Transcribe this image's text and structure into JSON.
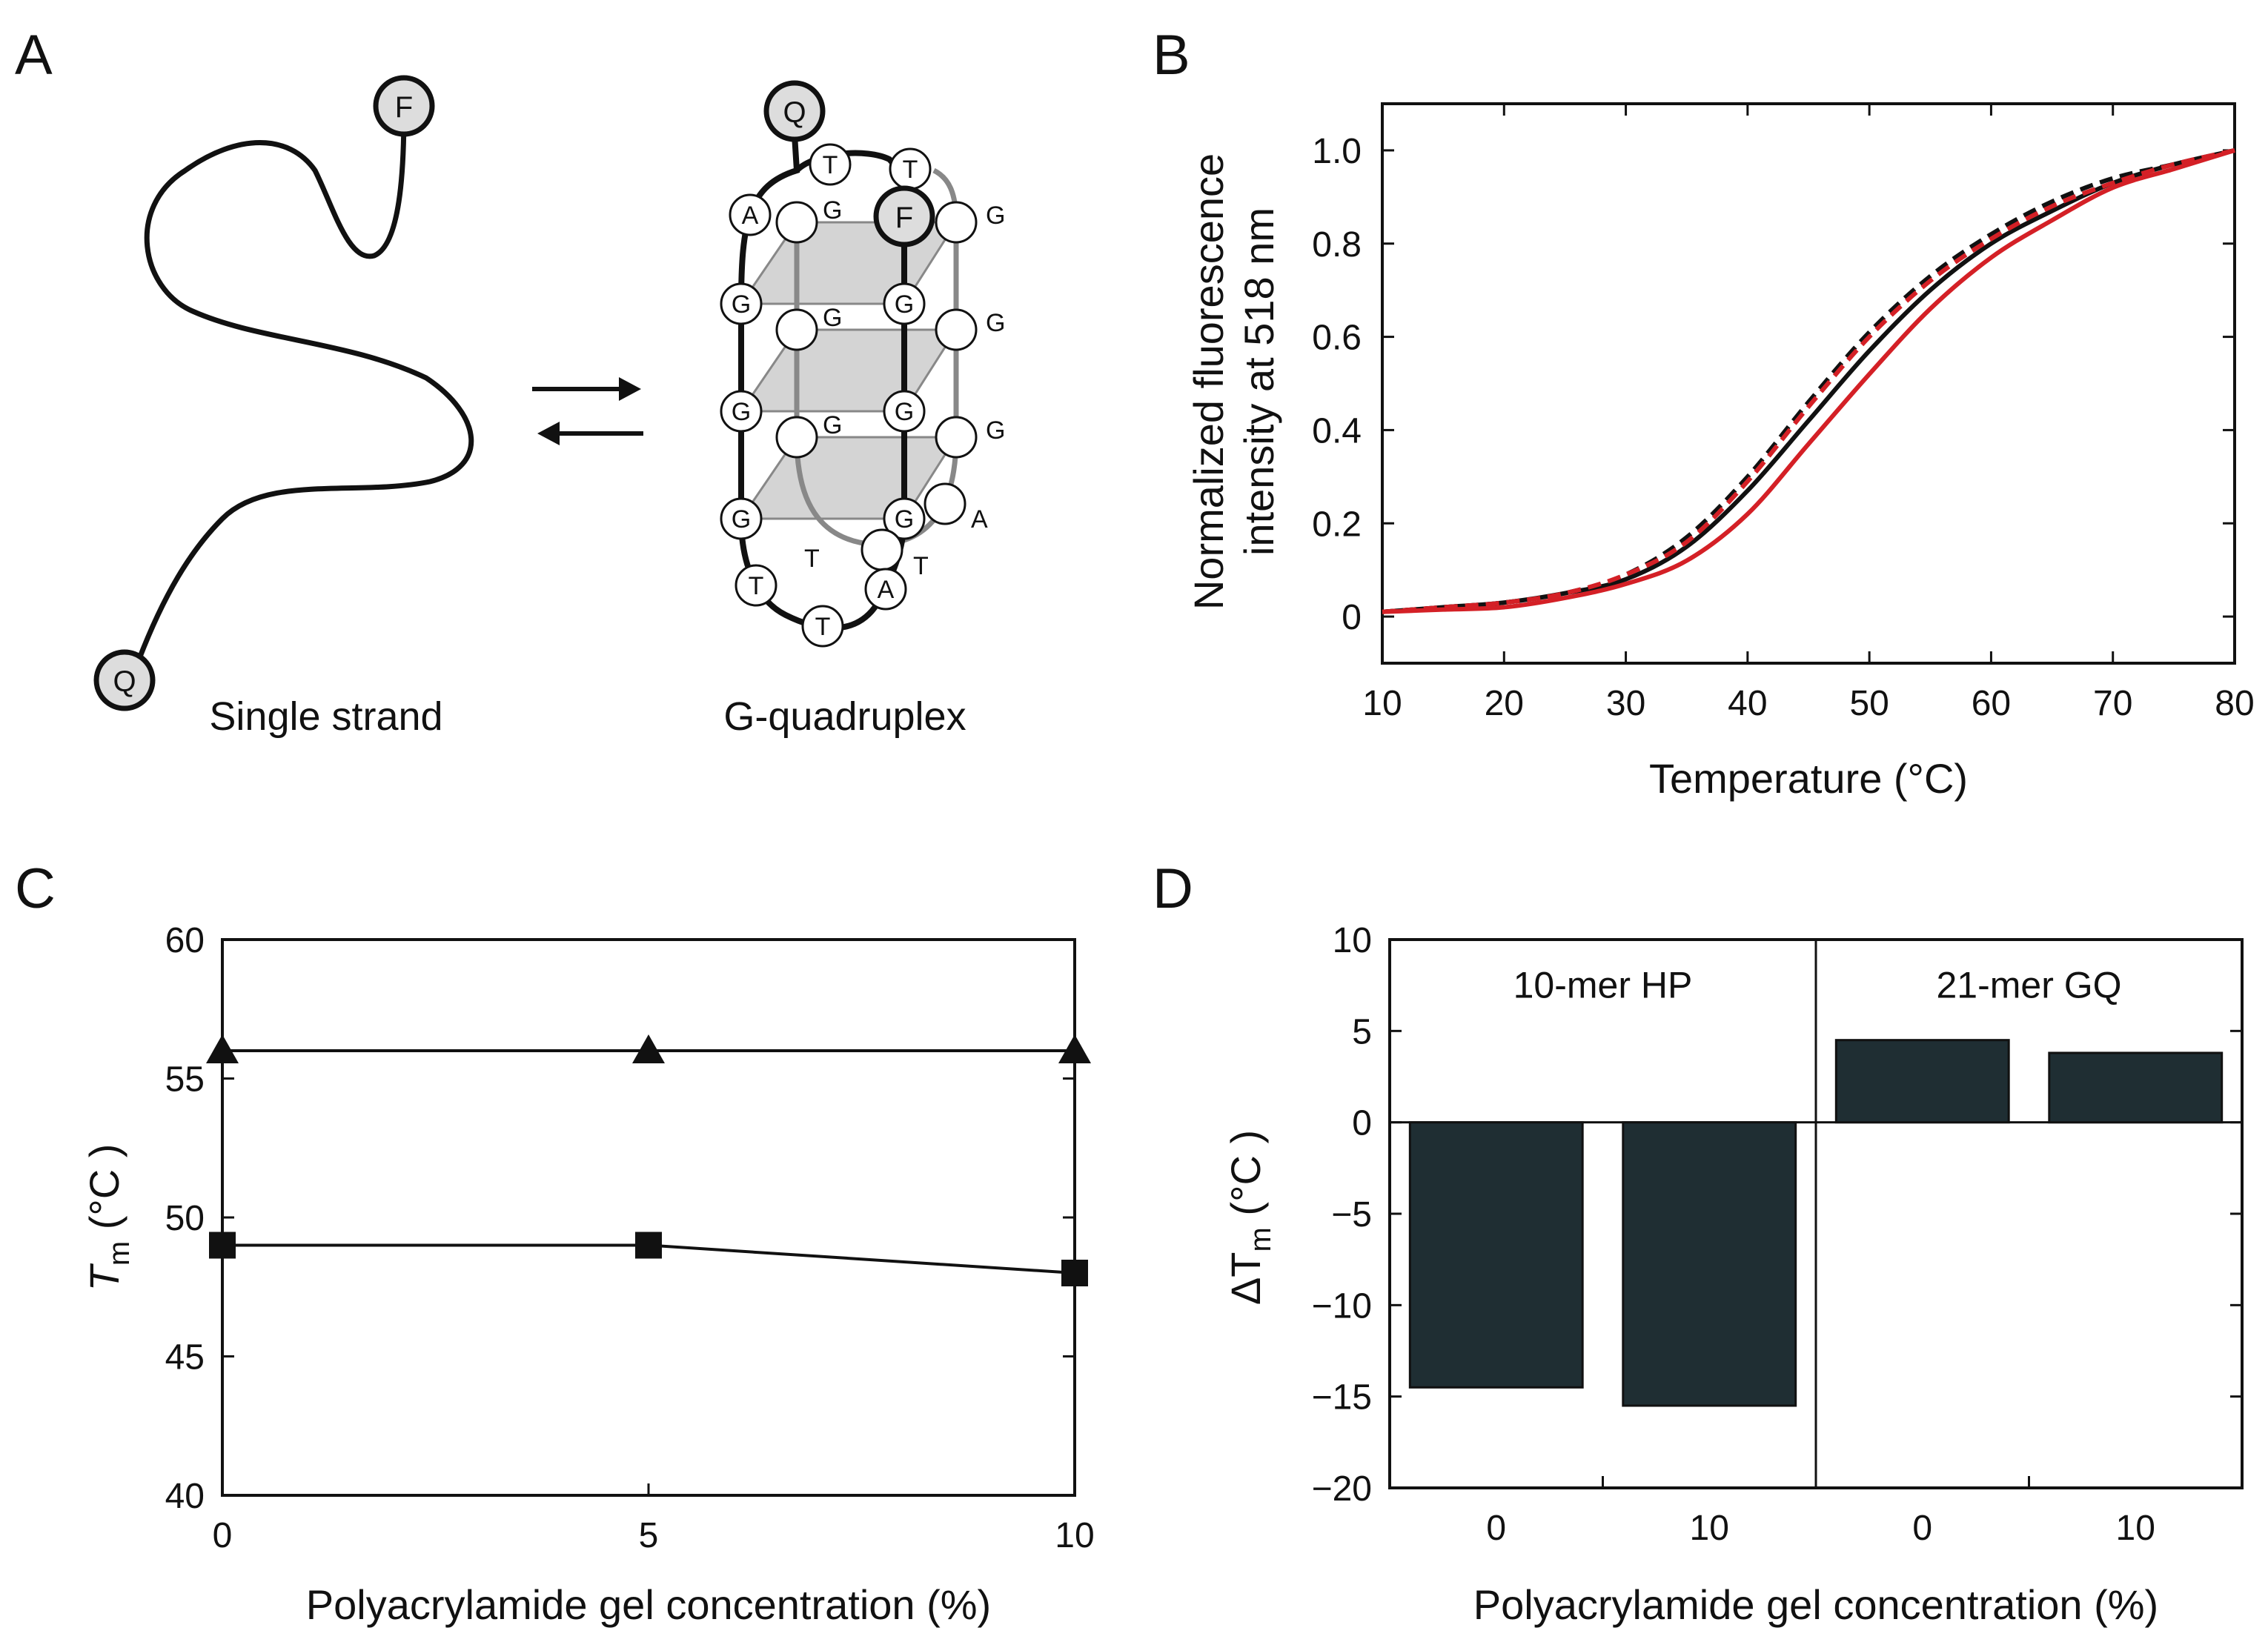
{
  "panels": {
    "A": {
      "label": "A",
      "left_caption": "Single strand",
      "right_caption": "G-quadruplex",
      "fluor": "F",
      "quencher": "Q",
      "nucleotides": {
        "top_T1": "T",
        "top_T2": "T",
        "A1": "A",
        "G_out1": "G",
        "G_r1c": "G",
        "G_l2": "G",
        "G_m2": "G",
        "G_c2": "G",
        "G_r2": "G",
        "G_l3": "G",
        "G_m3": "G",
        "G_c3": "G",
        "G_r3": "G",
        "G_l4": "G",
        "G_c4": "G",
        "A_r4": "A",
        "T_in": "T",
        "T_out": "T",
        "T_b1": "T",
        "T_b2": "T",
        "A_b": "A"
      }
    },
    "B": {
      "label": "B"
    },
    "C": {
      "label": "C"
    },
    "D": {
      "label": "D"
    }
  },
  "colors": {
    "black": "#111111",
    "red": "#d42026",
    "bar": "#1f2e33",
    "tetrad": "#d4d4d4"
  },
  "chart_data": [
    {
      "id": "B",
      "type": "line",
      "xlabel": "Temperature (°C)",
      "ylabel_line1": "Normalized fluorescence",
      "ylabel_line2": "intensity at 518 nm",
      "xlim": [
        10,
        80
      ],
      "ylim": [
        -0.1,
        1.1
      ],
      "xticks": [
        10,
        20,
        30,
        40,
        50,
        60,
        70,
        80
      ],
      "yticks": [
        0,
        0.2,
        0.4,
        0.6,
        0.8,
        1.0
      ],
      "ytick_labels": [
        "0",
        "0.2",
        "0.4",
        "0.6",
        "0.8",
        "1.0"
      ],
      "x": [
        10,
        15,
        20,
        25,
        30,
        35,
        40,
        45,
        50,
        55,
        60,
        65,
        70,
        75,
        80
      ],
      "series": [
        {
          "color": "#111111",
          "dash": false,
          "values": [
            0.01,
            0.02,
            0.03,
            0.05,
            0.08,
            0.15,
            0.27,
            0.42,
            0.57,
            0.7,
            0.8,
            0.87,
            0.93,
            0.97,
            1.0
          ]
        },
        {
          "color": "#111111",
          "dash": true,
          "values": [
            0.01,
            0.02,
            0.03,
            0.05,
            0.09,
            0.17,
            0.3,
            0.46,
            0.61,
            0.73,
            0.82,
            0.89,
            0.94,
            0.97,
            1.0
          ]
        },
        {
          "color": "#d42026",
          "dash": true,
          "values": [
            0.01,
            0.02,
            0.03,
            0.05,
            0.09,
            0.16,
            0.29,
            0.45,
            0.6,
            0.72,
            0.81,
            0.88,
            0.93,
            0.97,
            1.0
          ]
        },
        {
          "color": "#d42026",
          "dash": false,
          "values": [
            0.01,
            0.015,
            0.02,
            0.04,
            0.07,
            0.12,
            0.22,
            0.37,
            0.52,
            0.66,
            0.77,
            0.85,
            0.92,
            0.96,
            1.0
          ]
        }
      ]
    },
    {
      "id": "C",
      "type": "line",
      "xlabel": "Polyacrylamide gel concentration (%)",
      "ylabel_main": "T",
      "ylabel_sub": "m",
      "ylabel_unit": " (°C )",
      "xlim": [
        0,
        10
      ],
      "ylim": [
        40,
        60
      ],
      "xticks": [
        0,
        5,
        10
      ],
      "yticks": [
        40,
        45,
        50,
        55,
        60
      ],
      "series": [
        {
          "marker": "triangle",
          "x": [
            0,
            5,
            10
          ],
          "values": [
            56,
            56,
            56
          ]
        },
        {
          "marker": "square",
          "x": [
            0,
            5,
            10
          ],
          "values": [
            49,
            49,
            48
          ]
        }
      ]
    },
    {
      "id": "D",
      "type": "bar",
      "xlabel": "Polyacrylamide gel concentration (%)",
      "ylabel_main": "ΔT",
      "ylabel_sub": "m",
      "ylabel_unit": " (°C )",
      "ylim": [
        -20,
        10
      ],
      "yticks": [
        10,
        5,
        0,
        -5,
        -10,
        -15,
        -20
      ],
      "ytick_labels": [
        "10",
        "5",
        "0",
        "−5",
        "−10",
        "−15",
        "−20"
      ],
      "groups": [
        {
          "name": "10-mer HP",
          "categories": [
            "0",
            "10"
          ],
          "values": [
            -14.5,
            -15.5
          ]
        },
        {
          "name": "21-mer GQ",
          "categories": [
            "0",
            "10"
          ],
          "values": [
            4.5,
            3.8
          ]
        }
      ]
    }
  ]
}
